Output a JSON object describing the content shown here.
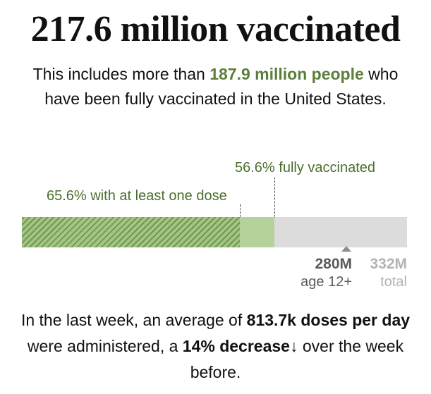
{
  "headline": "217.6 million vaccinated",
  "subtitle": {
    "before": "This includes more than ",
    "highlight": "187.9 million people",
    "after": " who have been fully vaccinated in the United States."
  },
  "progress": {
    "fully_label": "56.6% fully vaccinated",
    "one_dose_label": "65.6% with at least one dose",
    "fully_fraction": 0.566,
    "one_dose_fraction": 0.656,
    "eligible_fraction": 0.843
  },
  "population": {
    "eligible_value": "280M",
    "eligible_label": "age 12+",
    "total_value": "332M",
    "total_label": "total"
  },
  "footer": {
    "part1": "In the last week, an average of ",
    "doses": "813.7k doses per day",
    "part2": " were administered, a ",
    "change": "14% decrease",
    "arrow": "↓",
    "part3": " over the week before."
  },
  "colors": {
    "accent_green": "#5b7f3a",
    "label_green": "#4b6e2d",
    "bar_one_dose": "#b5d29a",
    "bar_fully": "#6f9a4c",
    "bar_remaining": "#dcdcdc",
    "muted_gray": "#b3b3b3"
  },
  "icons": {
    "trend": "down-arrow-icon",
    "marker": "triangle-marker-icon"
  }
}
